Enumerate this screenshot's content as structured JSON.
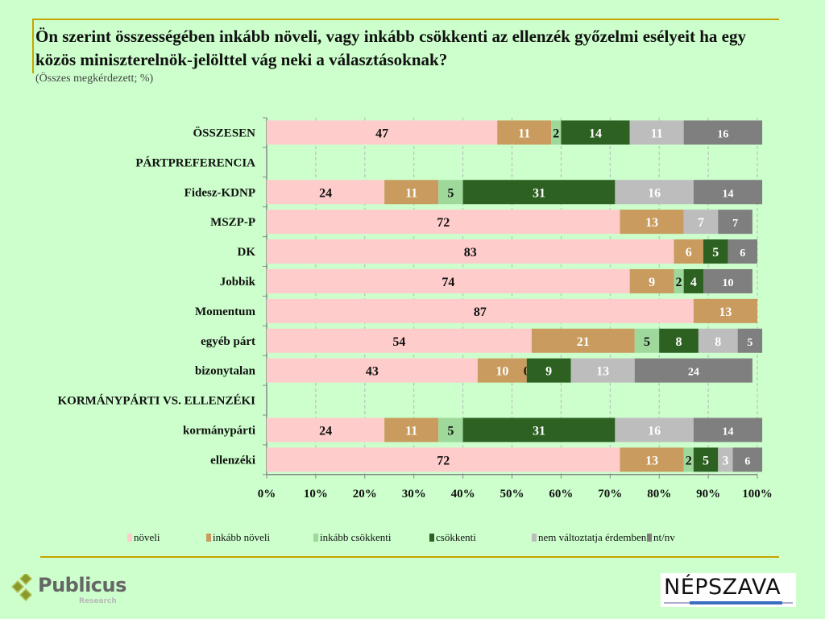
{
  "header": {
    "title": "Ön szerint összességében inkább növeli, vagy inkább csökkenti az ellenzék győzelmi esélyeit ha egy közös miniszterelnök-jelölttel vág neki a választásoknak?",
    "subtitle": "(Összes megkérdezett; %)"
  },
  "logos": {
    "left_name": "Publicus",
    "left_sub": "Research",
    "right_name": "NÉPSZAVA"
  },
  "chart_data": {
    "type": "bar",
    "orientation": "horizontal",
    "stacked": true,
    "title": "Ön szerint összességében inkább növeli, vagy inkább csökkenti az ellenzék győzelmi esélyeit ha egy közös miniszterelnök-jelölttel vág neki a választásoknak?",
    "subtitle": "(Összes megkérdezett; %)",
    "xlabel": "",
    "ylabel": "",
    "xlim": [
      0,
      100
    ],
    "x_ticks": [
      "0%",
      "10%",
      "20%",
      "30%",
      "40%",
      "50%",
      "60%",
      "70%",
      "80%",
      "90%",
      "100%"
    ],
    "grid": "vertical dashed",
    "legend_position": "bottom",
    "categories": [
      "ÖSSZESEN",
      "PÁRTPREFERENCIA",
      "Fidesz-KDNP",
      "MSZP-P",
      "DK",
      "Jobbik",
      "Momentum",
      "egyéb párt",
      "bizonytalan",
      "KORMÁNYPÁRTI VS. ELLENZÉKI",
      "kormánypárti",
      "ellenzéki"
    ],
    "header_categories": [
      "ÖSSZESEN",
      "PÁRTPREFERENCIA",
      "KORMÁNYPÁRTI VS. ELLENZÉKI"
    ],
    "series": [
      {
        "name": "növeli",
        "color": "#ffcccc",
        "label_color": "#111111",
        "values": [
          47,
          null,
          24,
          72,
          83,
          74,
          87,
          54,
          43,
          null,
          24,
          72
        ]
      },
      {
        "name": "inkább növeli",
        "color": "#c99b5e",
        "label_color": "#ffffff",
        "values": [
          11,
          null,
          11,
          13,
          6,
          9,
          13,
          21,
          10,
          null,
          11,
          13
        ]
      },
      {
        "name": "inkább csökkenti",
        "color": "#9ed89a",
        "label_color": "#111111",
        "values": [
          2,
          null,
          5,
          null,
          null,
          2,
          null,
          5,
          0,
          null,
          5,
          2
        ]
      },
      {
        "name": "csökkenti",
        "color": "#2d6122",
        "label_color": "#ffffff",
        "values": [
          14,
          null,
          31,
          null,
          5,
          4,
          null,
          8,
          9,
          null,
          31,
          5
        ]
      },
      {
        "name": "nem változtatja érdemben",
        "color": "#bdbdbd",
        "label_color": "#ffffff",
        "values": [
          11,
          null,
          16,
          7,
          null,
          null,
          null,
          8,
          13,
          null,
          16,
          3
        ]
      },
      {
        "name": "nt/nv",
        "color": "#7f7f7f",
        "label_color": "#ffffff",
        "values": [
          16,
          null,
          14,
          7,
          6,
          10,
          null,
          5,
          24,
          null,
          14,
          6
        ]
      }
    ]
  }
}
